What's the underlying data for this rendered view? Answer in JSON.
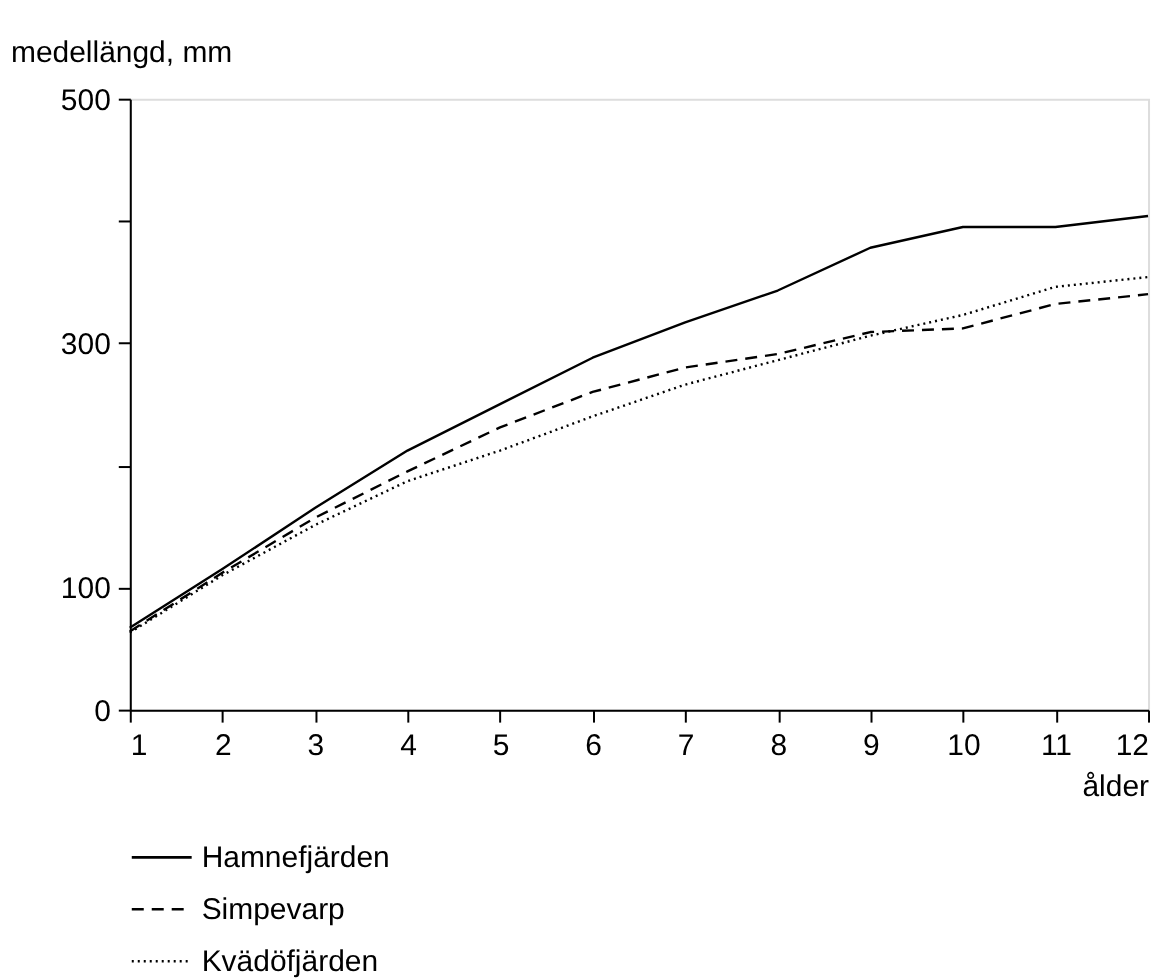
{
  "chart_data": {
    "type": "line",
    "xlabel": "ålder",
    "ylabel": "medellängd, mm",
    "x": [
      1,
      2,
      3,
      4,
      5,
      6,
      7,
      8,
      9,
      10,
      11,
      12
    ],
    "xlim": [
      1,
      12
    ],
    "xticks": [
      1,
      2,
      3,
      4,
      5,
      6,
      7,
      8,
      9,
      10,
      11,
      12
    ],
    "ylim": [
      0,
      500
    ],
    "yticks": [
      0,
      100,
      {
        "value": 200,
        "label": null
      },
      300,
      {
        "value": 400,
        "label": null
      },
      500
    ],
    "grid": false,
    "legend": "bottom",
    "marker": "none",
    "series": [
      {
        "name": "Hamnefjärden",
        "color": "#000000",
        "line_style": "solid",
        "values": [
          67,
          115,
          165,
          212,
          250,
          288,
          317,
          343,
          378,
          395,
          395,
          404
        ]
      },
      {
        "name": "Simpevarp",
        "color": "#000000",
        "line_style": "dashed",
        "values": [
          64,
          112,
          157,
          195,
          231,
          260,
          280,
          291,
          309,
          312,
          332,
          340
        ]
      },
      {
        "name": "Kvädöfjärden",
        "color": "#000000",
        "line_style": "dotted",
        "values": [
          63,
          110,
          151,
          187,
          212,
          240,
          266,
          286,
          306,
          323,
          346,
          354
        ]
      }
    ]
  }
}
